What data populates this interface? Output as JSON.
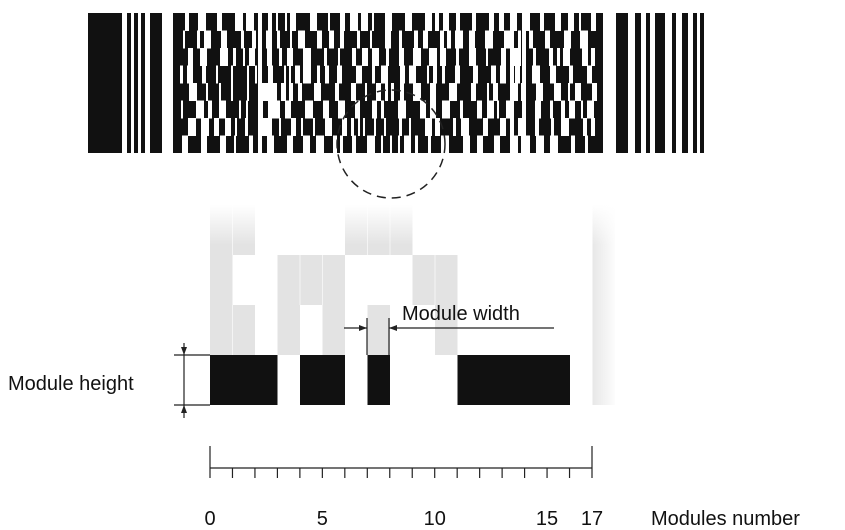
{
  "labels": {
    "module_width": "Module width",
    "module_height": "Module height",
    "modules_number": "Modules number"
  },
  "axis": {
    "ticks": [
      "0",
      "5",
      "10",
      "15",
      "17"
    ],
    "min": 0,
    "max": 17
  },
  "colors": {
    "bar": "#111111",
    "ghost": "#e3e3e3",
    "line": "#222222"
  }
}
